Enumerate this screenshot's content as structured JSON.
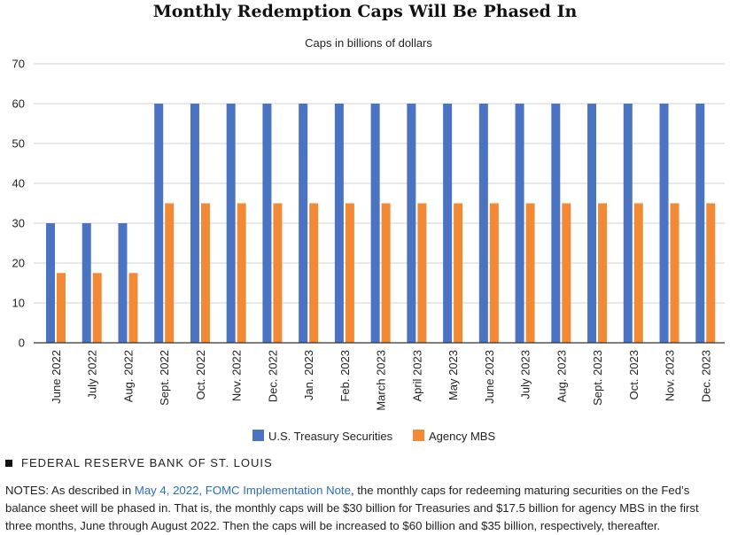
{
  "page_title": "Monthly Redemption Caps Will Be Phased In",
  "source_label": "FEDERAL RESERVE BANK OF ST. LOUIS",
  "notes": {
    "prefix": "NOTES: As described in ",
    "link_text": "May 4, 2022, FOMC Implementation Note",
    "suffix": ", the monthly caps for redeeming maturing securities on the Fed’s balance sheet will be phased in. That is, the monthly caps will be $30 billion for Treasuries and $17.5 billion for agency MBS in the first three months, June through August 2022. Then the caps will be increased to $60 billion and $35 billion, respectively, thereafter."
  },
  "colors": {
    "treasury": "#4a73c2",
    "mbs": "#f28a35",
    "grid": "#d0d0d0",
    "axis": "#333333"
  },
  "chart_data": {
    "type": "bar",
    "title": "Monthly Redemption Caps Will Be Phased In",
    "subtitle": "Caps in billions of dollars",
    "xlabel": "",
    "ylabel": "",
    "ylim": [
      0,
      70
    ],
    "yticks": [
      0,
      10,
      20,
      30,
      40,
      50,
      60,
      70
    ],
    "grid": true,
    "legend_position": "bottom-center",
    "categories": [
      "June 2022",
      "July 2022",
      "Aug. 2022",
      "Sept. 2022",
      "Oct. 2022",
      "Nov. 2022",
      "Dec. 2022",
      "Jan. 2023",
      "Feb. 2023",
      "March 2023",
      "April 2023",
      "May 2023",
      "June 2023",
      "July 2023",
      "Aug. 2023",
      "Sept. 2023",
      "Oct. 2023",
      "Nov. 2023",
      "Dec. 2023"
    ],
    "series": [
      {
        "name": "U.S. Treasury Securities",
        "values": [
          30,
          30,
          30,
          60,
          60,
          60,
          60,
          60,
          60,
          60,
          60,
          60,
          60,
          60,
          60,
          60,
          60,
          60,
          60
        ]
      },
      {
        "name": "Agency MBS",
        "values": [
          17.5,
          17.5,
          17.5,
          35,
          35,
          35,
          35,
          35,
          35,
          35,
          35,
          35,
          35,
          35,
          35,
          35,
          35,
          35,
          35
        ]
      }
    ]
  }
}
